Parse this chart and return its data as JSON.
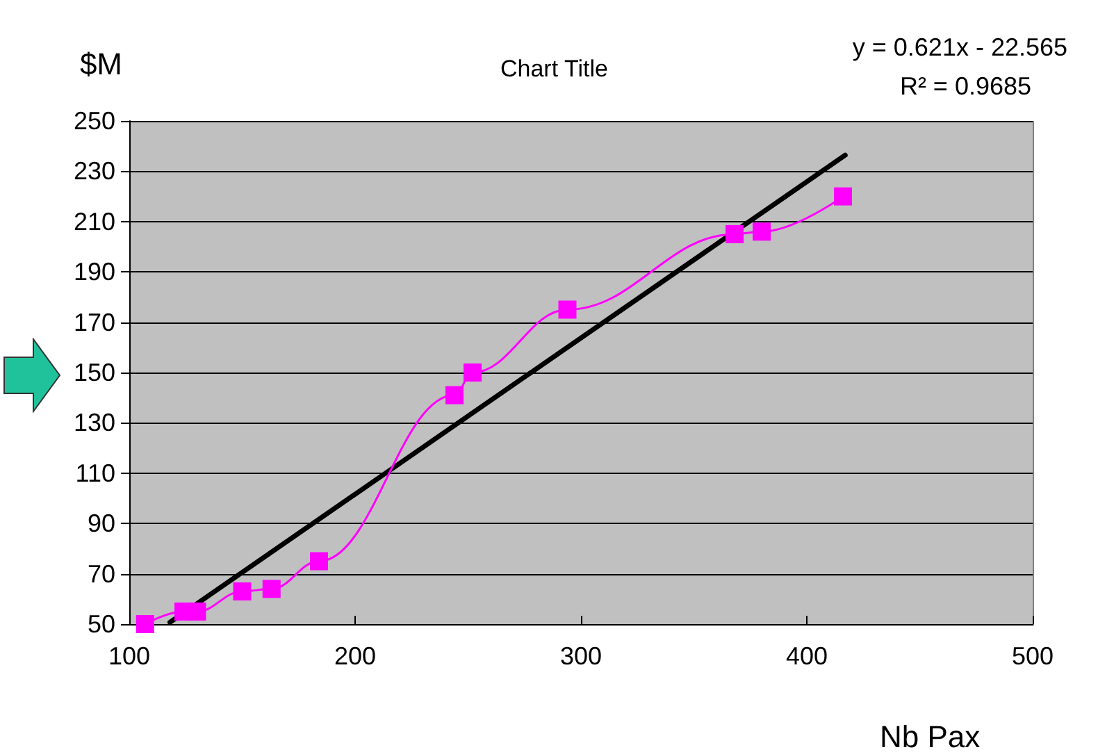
{
  "chart_data": {
    "type": "line",
    "title": "Chart Title",
    "xlabel": "Nb Pax",
    "ylabel": "$M",
    "annotations": [
      "y = 0.621x - 22.565",
      "R² = 0.9685"
    ],
    "series": [
      {
        "color": "#ff00ff",
        "marker": "square",
        "x": [
          107,
          124,
          130,
          150,
          163,
          184,
          244,
          252,
          294,
          368,
          380,
          416
        ],
        "values": [
          50,
          55,
          55,
          63,
          64,
          75,
          141,
          150,
          175,
          205,
          206,
          220
        ]
      },
      {
        "color": "#000000",
        "marker": "none",
        "x": [
          118,
          417
        ],
        "values": [
          50.7,
          236.4
        ]
      }
    ],
    "xlim": [
      100,
      500
    ],
    "xticks": [
      100,
      200,
      300,
      400,
      500
    ],
    "ylim": [
      50,
      250
    ],
    "yticks": [
      50,
      70,
      90,
      110,
      130,
      150,
      170,
      190,
      210,
      230,
      250
    ],
    "grid": "y"
  }
}
